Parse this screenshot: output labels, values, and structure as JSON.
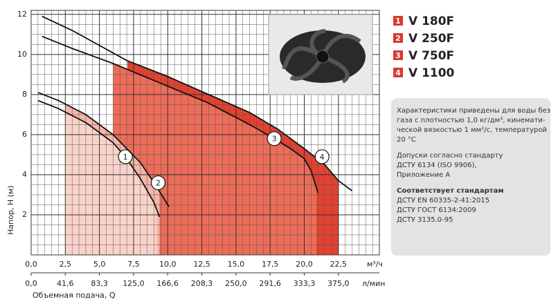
{
  "chart_data": {
    "type": "line",
    "xlabel": "Объемная подача, Q",
    "ylabel": "Напор, H (м)",
    "xunit": "м³/ч",
    "x2unit": "л/мин",
    "xlim": [
      0,
      25.5
    ],
    "ylim": [
      0,
      12.2
    ],
    "xticks": [
      {
        "value": 0,
        "label": "0,0"
      },
      {
        "value": 2.5,
        "label": "2,5"
      },
      {
        "value": 5,
        "label": "5,0"
      },
      {
        "value": 7.5,
        "label": "7,5"
      },
      {
        "value": 10,
        "label": "10,0"
      },
      {
        "value": 12.5,
        "label": "12,5"
      },
      {
        "value": 15,
        "label": "15,0"
      },
      {
        "value": 17.5,
        "label": "17,5"
      },
      {
        "value": 20,
        "label": "20,0"
      },
      {
        "value": 22.5,
        "label": "22,5"
      }
    ],
    "yticks": [
      2,
      4,
      6,
      8,
      10,
      12
    ],
    "x2lim": [
      0,
      425
    ],
    "x2ticks": [
      {
        "value": 0,
        "label": "0,0"
      },
      {
        "value": 41.6,
        "label": "41,6"
      },
      {
        "value": 83.3,
        "label": "83,3"
      },
      {
        "value": 125,
        "label": "125,0"
      },
      {
        "value": 166.6,
        "label": "166,6"
      },
      {
        "value": 208.3,
        "label": "208,3"
      },
      {
        "value": 250,
        "label": "250,0"
      },
      {
        "value": 291.6,
        "label": "291,6"
      },
      {
        "value": 333.3,
        "label": "333,3"
      },
      {
        "value": 375,
        "label": "375,0"
      }
    ],
    "grid": true,
    "xminor": 0.5,
    "yminor": 0.5,
    "series": [
      {
        "name": "V 180F",
        "label": "1",
        "color": "#f9d3c9",
        "x": [
          0.5,
          2,
          4,
          6,
          7,
          8,
          9,
          9.4
        ],
        "values": [
          7.7,
          7.3,
          6.6,
          5.6,
          4.8,
          3.8,
          2.6,
          1.9
        ],
        "range": [
          2.5,
          9.2
        ],
        "label_at": [
          6.9,
          4.9
        ]
      },
      {
        "name": "V 250F",
        "label": "2",
        "color": "#f5b5a8",
        "x": [
          0.5,
          2,
          4,
          6,
          8,
          9,
          10.1
        ],
        "values": [
          8.1,
          7.7,
          7.0,
          6.0,
          4.6,
          3.6,
          2.4
        ],
        "range": [
          2.5,
          9.4
        ],
        "label_at": [
          9.3,
          3.6
        ]
      },
      {
        "name": "V 750F",
        "label": "3",
        "color": "#ec6c58",
        "x": [
          0.8,
          3,
          6,
          9,
          12.9,
          16,
          17.8,
          19,
          20,
          20.5,
          21
        ],
        "values": [
          10.9,
          10.3,
          9.55,
          8.7,
          7.6,
          6.5,
          5.8,
          5.3,
          4.8,
          4.2,
          3.1
        ],
        "range": [
          6,
          20.9
        ],
        "label_at": [
          17.8,
          5.8
        ]
      },
      {
        "name": "V 1100",
        "label": "4",
        "color": "#e3412f",
        "x": [
          0.8,
          3,
          7,
          10,
          13,
          16,
          18,
          20,
          21.5,
          22.5,
          23.5
        ],
        "values": [
          11.9,
          11.2,
          9.7,
          8.9,
          8.0,
          7.1,
          6.3,
          5.3,
          4.5,
          3.7,
          3.2
        ],
        "range": [
          7.05,
          22.5
        ],
        "label_at": [
          21.3,
          4.9
        ]
      }
    ]
  },
  "info": {
    "paragraphs": [
      [
        "Характеристики приведены для воды без",
        "газа с плотностью 1,0 кг/дм³, кинемати-",
        "ческой вязкостью 1 мм²/с, температурой",
        "20 °C"
      ],
      [
        "Допуски согласно стандарту",
        "ДСТУ 6134 (ISO 9906),",
        "Приложение А"
      ]
    ],
    "standards_title": "Соответствует стандартам",
    "standards": [
      "ДСТУ EN 60335-2-41:2015",
      "ДСТУ ГОСТ 6134:2009",
      "ДСТУ 3135.0-95"
    ]
  }
}
